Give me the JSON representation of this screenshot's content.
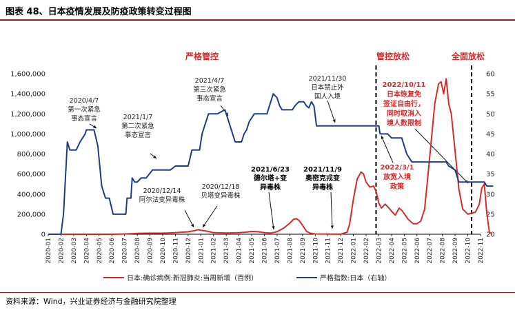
{
  "figure": {
    "title": "图表 48、日本疫情发展及防疫政策转变过程图",
    "source": "资料来源：Wind，兴业证券经济与金融研究院整理"
  },
  "colors": {
    "red": "#d42a2a",
    "blue": "#1f3c88",
    "rule": "#8a1f24",
    "grid": "#000000"
  },
  "chart_data": {
    "type": "line",
    "x_ticks": [
      "2020-01",
      "2020-02",
      "2020-03",
      "2020-04",
      "2020-05",
      "2020-06",
      "2020-07",
      "2020-08",
      "2020-09",
      "2020-10",
      "2020-11",
      "2020-12",
      "2021-01",
      "2021-02",
      "2021-03",
      "2021-04",
      "2021-05",
      "2021-06",
      "2021-07",
      "2021-08",
      "2021-09",
      "2021-10",
      "2021-11",
      "2021-12",
      "2022-01",
      "2022-02",
      "2022-03",
      "2022-04",
      "2022-05",
      "2022-06",
      "2022-07",
      "2022-08",
      "2022-09",
      "2022-10",
      "2022-11"
    ],
    "y_left": {
      "min": 0,
      "max": 1600000,
      "ticks": [
        "0",
        "200,000",
        "400,000",
        "600,000",
        "800,000",
        "1,000,000",
        "1,200,000",
        "1,400,000",
        "1,600,000"
      ]
    },
    "y_right": {
      "min": 20,
      "max": 60,
      "ticks": [
        "20",
        "25",
        "30",
        "35",
        "40",
        "45",
        "50",
        "55",
        "60"
      ]
    },
    "series": [
      {
        "name": "日本:确诊病例:新冠肺炎:当周新增（百例）",
        "axis": "left",
        "color": "#d42a2a",
        "points": [
          [
            0,
            0
          ],
          [
            5,
            0
          ],
          [
            6,
            3000
          ],
          [
            7,
            8000
          ],
          [
            8,
            10000
          ],
          [
            9,
            10000
          ],
          [
            10,
            15000
          ],
          [
            11,
            25000
          ],
          [
            11.5,
            35000
          ],
          [
            11.8,
            45000
          ],
          [
            12,
            40000
          ],
          [
            12.5,
            30000
          ],
          [
            13,
            15000
          ],
          [
            14,
            12000
          ],
          [
            15,
            15000
          ],
          [
            15.5,
            20000
          ],
          [
            16,
            28000
          ],
          [
            16.5,
            25000
          ],
          [
            17,
            15000
          ],
          [
            17.5,
            12000
          ],
          [
            18,
            25000
          ],
          [
            18.5,
            60000
          ],
          [
            19,
            110000
          ],
          [
            19.3,
            150000
          ],
          [
            19.5,
            155000
          ],
          [
            19.7,
            140000
          ],
          [
            20,
            90000
          ],
          [
            20.3,
            30000
          ],
          [
            20.6,
            10000
          ],
          [
            21,
            3000
          ],
          [
            23,
            1000
          ],
          [
            23.5,
            20000
          ],
          [
            23.7,
            100000
          ],
          [
            24,
            350000
          ],
          [
            24.3,
            550000
          ],
          [
            24.6,
            620000
          ],
          [
            24.8,
            600000
          ],
          [
            25,
            520000
          ],
          [
            25.3,
            470000
          ],
          [
            25.6,
            480000
          ],
          [
            25.8,
            420000
          ],
          [
            26,
            310000
          ],
          [
            26.2,
            260000
          ],
          [
            26.5,
            300000
          ],
          [
            26.8,
            260000
          ],
          [
            27,
            230000
          ],
          [
            27.3,
            190000
          ],
          [
            27.6,
            260000
          ],
          [
            27.8,
            240000
          ],
          [
            28.3,
            150000
          ],
          [
            28.7,
            105000
          ],
          [
            29,
            105000
          ],
          [
            29.3,
            130000
          ],
          [
            29.6,
            250000
          ],
          [
            29.8,
            500000
          ],
          [
            30.1,
            900000
          ],
          [
            30.4,
            1300000
          ],
          [
            30.7,
            1500000
          ],
          [
            30.9,
            1520000
          ],
          [
            31.1,
            1400000
          ],
          [
            31.3,
            1550000
          ],
          [
            31.5,
            1300000
          ],
          [
            31.7,
            1200000
          ],
          [
            31.9,
            950000
          ],
          [
            32.1,
            700000
          ],
          [
            32.3,
            450000
          ],
          [
            32.6,
            250000
          ],
          [
            33,
            200000
          ],
          [
            33.3,
            210000
          ],
          [
            33.6,
            220000
          ],
          [
            33.9,
            300000
          ],
          [
            34.1,
            460000
          ],
          [
            34.3,
            500000
          ],
          [
            34.5,
            200000
          ],
          [
            34.7,
            20000
          ],
          [
            34.9,
            0
          ]
        ]
      },
      {
        "name": "严格指数:日本（右轴）",
        "axis": "right",
        "color": "#1f3c88",
        "points": [
          [
            0,
            20
          ],
          [
            1,
            20
          ],
          [
            1.2,
            25
          ],
          [
            1.5,
            43
          ],
          [
            1.7,
            41
          ],
          [
            2.2,
            41
          ],
          [
            2.5,
            43
          ],
          [
            2.9,
            45
          ],
          [
            3,
            46
          ],
          [
            3.6,
            46
          ],
          [
            3.9,
            42
          ],
          [
            4.2,
            32
          ],
          [
            4.5,
            29
          ],
          [
            4.8,
            29
          ],
          [
            5.1,
            25
          ],
          [
            5.4,
            25
          ],
          [
            6.1,
            25
          ],
          [
            6.2,
            29
          ],
          [
            6.5,
            29
          ],
          [
            6.6,
            34
          ],
          [
            6.8,
            33
          ],
          [
            7,
            33
          ],
          [
            7.3,
            34
          ],
          [
            7.7,
            34
          ],
          [
            8.2,
            36
          ],
          [
            9.6,
            36
          ],
          [
            10,
            37
          ],
          [
            11,
            37
          ],
          [
            11.3,
            41
          ],
          [
            11.9,
            41
          ],
          [
            12.1,
            45
          ],
          [
            12.3,
            47
          ],
          [
            12.6,
            50
          ],
          [
            13.3,
            50
          ],
          [
            13.9,
            51
          ],
          [
            14.2,
            48
          ],
          [
            14.5,
            45
          ],
          [
            14.7,
            43
          ],
          [
            15.2,
            43
          ],
          [
            15.4,
            45
          ],
          [
            15.6,
            46
          ],
          [
            15.8,
            48
          ],
          [
            16.2,
            50
          ],
          [
            16.6,
            50
          ],
          [
            17.2,
            50
          ],
          [
            17.4,
            52
          ],
          [
            17.7,
            55
          ],
          [
            18,
            54
          ],
          [
            18.2,
            52
          ],
          [
            18.4,
            51
          ],
          [
            18.6,
            51
          ],
          [
            19.2,
            51
          ],
          [
            19.4,
            52
          ],
          [
            19.7,
            53
          ],
          [
            20.1,
            53
          ],
          [
            20.3,
            52
          ],
          [
            20.5,
            51.5
          ],
          [
            20.7,
            53
          ],
          [
            20.9,
            52
          ],
          [
            21.1,
            47
          ],
          [
            21.5,
            47
          ],
          [
            26,
            47
          ],
          [
            26.1,
            45
          ],
          [
            26.7,
            45
          ],
          [
            27,
            44
          ],
          [
            27.8,
            44
          ],
          [
            28.2,
            40
          ],
          [
            28.6,
            38
          ],
          [
            31.3,
            38
          ],
          [
            31.5,
            37
          ],
          [
            32,
            36
          ],
          [
            32.3,
            33
          ],
          [
            33,
            33
          ],
          [
            34.3,
            33
          ],
          [
            34.5,
            32
          ],
          [
            35,
            32
          ]
        ]
      }
    ],
    "legend": [
      "日本:确诊病例:新冠肺炎:当周新增（百例）",
      "严格指数:日本（右轴）"
    ],
    "annotations": {
      "phases": [
        "严格管控",
        "管控放松",
        "全面放松"
      ],
      "events": [
        {
          "date": "2020/4/7",
          "text": [
            "第一次紧急",
            "事态宣言"
          ]
        },
        {
          "date": "2021/1/7",
          "text": [
            "第二次紧急",
            "事态宣言"
          ]
        },
        {
          "date": "2021/4/7",
          "text": [
            "第三次紧急",
            "事态宣言"
          ]
        },
        {
          "date": "2021/11/30",
          "text": [
            "日本禁止外",
            "国人入境"
          ]
        },
        {
          "date": "2020/12/14",
          "text": [
            "阿尔法变异毒株"
          ]
        },
        {
          "date": "2020/12/18",
          "text": [
            "贝塔变异毒株"
          ]
        },
        {
          "date": "2021/6/23",
          "text": [
            "德尔塔+变",
            "异毒株"
          ]
        },
        {
          "date": "2021/11/9",
          "text": [
            "奥密克戎变",
            "异毒株"
          ]
        },
        {
          "date": "2022/10/11",
          "text": [
            "日本恢复免",
            "签证自由行，",
            "同时取消入",
            "境人数限制"
          ]
        },
        {
          "date": "2022/3/1",
          "text": [
            "放宽入境",
            "政策"
          ]
        }
      ]
    }
  }
}
